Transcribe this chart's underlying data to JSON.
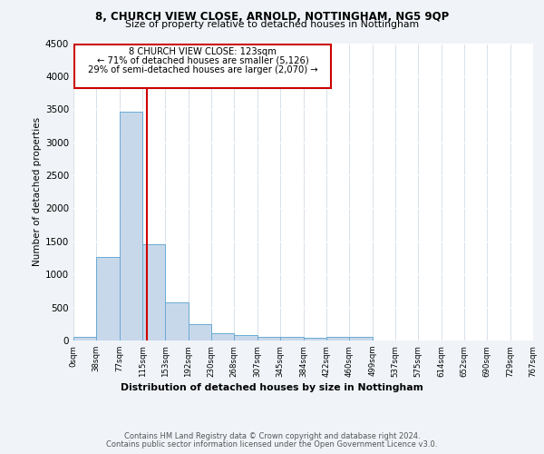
{
  "title1": "8, CHURCH VIEW CLOSE, ARNOLD, NOTTINGHAM, NG5 9QP",
  "title2": "Size of property relative to detached houses in Nottingham",
  "xlabel": "Distribution of detached houses by size in Nottingham",
  "ylabel": "Number of detached properties",
  "bin_edges": [
    0,
    38,
    77,
    115,
    153,
    192,
    230,
    268,
    307,
    345,
    384,
    422,
    460,
    499,
    537,
    575,
    614,
    652,
    690,
    729,
    767
  ],
  "bar_heights": [
    50,
    1270,
    3460,
    1460,
    580,
    250,
    115,
    80,
    60,
    50,
    45,
    50,
    60,
    0,
    0,
    0,
    0,
    0,
    0,
    0
  ],
  "bar_color": "#c8d8eb",
  "bar_edge_color": "#6aaad4",
  "property_size": 123,
  "property_label": "8 CHURCH VIEW CLOSE: 123sqm",
  "annotation_line1": "← 71% of detached houses are smaller (5,126)",
  "annotation_line2": "29% of semi-detached houses are larger (2,070) →",
  "vline_color": "#cc0000",
  "annotation_box_color": "#ffffff",
  "annotation_box_edge": "#cc0000",
  "ylim": [
    0,
    4500
  ],
  "yticks": [
    0,
    500,
    1000,
    1500,
    2000,
    2500,
    3000,
    3500,
    4000,
    4500
  ],
  "footer1": "Contains HM Land Registry data © Crown copyright and database right 2024.",
  "footer2": "Contains public sector information licensed under the Open Government Licence v3.0.",
  "bg_color": "#f0f4f8",
  "plot_bg_color": "#ffffff"
}
